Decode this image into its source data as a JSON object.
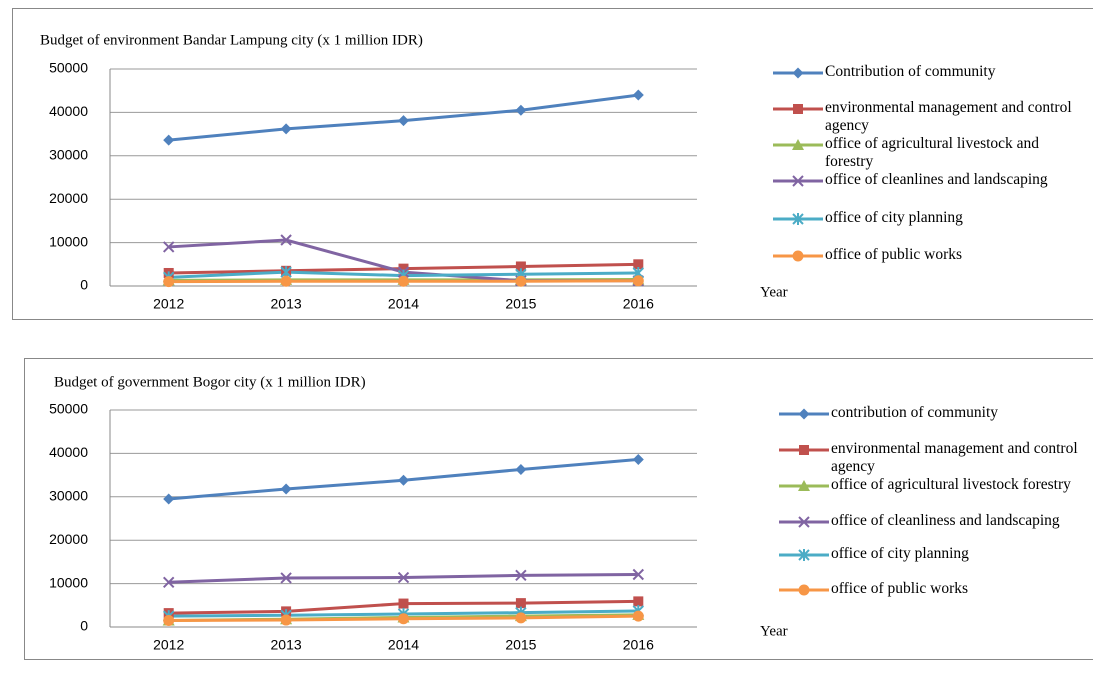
{
  "chart_data": [
    {
      "type": "line",
      "title": "Budget of environment Bandar Lampung city (x 1 million IDR)",
      "x_label": "Year",
      "categories": [
        "2012",
        "2013",
        "2014",
        "2015",
        "2016"
      ],
      "ylim": [
        0,
        50000
      ],
      "yticks": [
        0,
        10000,
        20000,
        30000,
        40000,
        50000
      ],
      "grid": true,
      "legend": "right",
      "series": [
        {
          "name": "Contribution of community",
          "color": "#4f81bd",
          "marker": "diamond",
          "values": [
            33600,
            36200,
            38100,
            40500,
            44000
          ]
        },
        {
          "name": "environmental management and control agency",
          "color": "#c0504d",
          "marker": "square",
          "values": [
            3000,
            3500,
            4000,
            4500,
            5000
          ]
        },
        {
          "name": "office of agricultural livestock and forestry",
          "color": "#9bbb59",
          "marker": "triangle",
          "values": [
            1300,
            1400,
            1400,
            1400,
            1500
          ]
        },
        {
          "name": "office of cleanlines and landscaping",
          "color": "#8064a2",
          "marker": "x",
          "values": [
            9000,
            10600,
            3200,
            1200,
            1200
          ]
        },
        {
          "name": "office of city planning",
          "color": "#4bacc6",
          "marker": "star",
          "values": [
            2000,
            3200,
            2400,
            2700,
            3000
          ]
        },
        {
          "name": "office of public works",
          "color": "#f79646",
          "marker": "circle",
          "values": [
            1000,
            1100,
            1100,
            1100,
            1200
          ]
        }
      ]
    },
    {
      "type": "line",
      "title": "Budget of government Bogor city (x 1 million IDR)",
      "x_label": "Year",
      "categories": [
        "2012",
        "2013",
        "2014",
        "2015",
        "2016"
      ],
      "ylim": [
        0,
        50000
      ],
      "yticks": [
        0,
        10000,
        20000,
        30000,
        40000,
        50000
      ],
      "grid": true,
      "legend": "right",
      "series": [
        {
          "name": "contribution of community",
          "color": "#4f81bd",
          "marker": "diamond",
          "values": [
            29500,
            31800,
            33800,
            36300,
            38600
          ]
        },
        {
          "name": "environmental management and control agency",
          "color": "#c0504d",
          "marker": "square",
          "values": [
            3200,
            3600,
            5400,
            5500,
            5900
          ]
        },
        {
          "name": "office of agricultural livestock forestry",
          "color": "#9bbb59",
          "marker": "triangle",
          "values": [
            1500,
            1800,
            2200,
            2500,
            2800
          ]
        },
        {
          "name": "office of cleanliness and landscaping",
          "color": "#8064a2",
          "marker": "x",
          "values": [
            10300,
            11300,
            11400,
            11900,
            12100
          ]
        },
        {
          "name": "office of city planning",
          "color": "#4bacc6",
          "marker": "star",
          "values": [
            2500,
            2700,
            3000,
            3300,
            3700
          ]
        },
        {
          "name": "office of public works",
          "color": "#f79646",
          "marker": "circle",
          "values": [
            1500,
            1600,
            1900,
            2100,
            2500
          ]
        }
      ]
    }
  ]
}
